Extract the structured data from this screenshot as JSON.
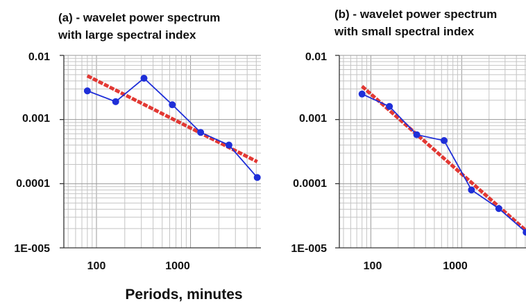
{
  "figure": {
    "xlabel": "Periods, minutes"
  },
  "chart_data": [
    {
      "type": "line",
      "title_lines": [
        "(a) - wavelet power spectrum",
        "with large spectral index"
      ],
      "x_scale": "log",
      "y_scale": "log",
      "xlim": [
        45,
        5600
      ],
      "ylim": [
        1e-05,
        0.01
      ],
      "x_ticks": [
        "100",
        "1000"
      ],
      "y_ticks": [
        "0.01",
        "0.001",
        "0.0001",
        "1E-005"
      ],
      "grid": true,
      "series": [
        {
          "style": "line-markers",
          "color": "#1f2fd8",
          "x": [
            80,
            160,
            320,
            640,
            1280,
            2560,
            5120
          ],
          "y": [
            0.0028,
            0.0019,
            0.0044,
            0.0017,
            0.00063,
            0.0004,
            0.000125
          ]
        },
        {
          "style": "fit-line",
          "color": "#e0241f",
          "x": [
            80,
            5120
          ],
          "y": [
            0.0048,
            0.00022
          ]
        }
      ]
    },
    {
      "type": "line",
      "title_lines": [
        "(b) - wavelet power spectrum",
        "with small spectral index"
      ],
      "x_scale": "log",
      "y_scale": "log",
      "xlim": [
        45,
        5100
      ],
      "ylim": [
        1e-05,
        0.01
      ],
      "x_ticks": [
        "100",
        "1000"
      ],
      "y_ticks": [
        "0.01",
        "0.001",
        "0.0001",
        "1E-005"
      ],
      "grid": true,
      "series": [
        {
          "style": "line-markers",
          "color": "#1f2fd8",
          "x": [
            80,
            160,
            320,
            640,
            1280,
            2560,
            5120
          ],
          "y": [
            0.0025,
            0.0016,
            0.00058,
            0.00047,
            8e-05,
            4.1e-05,
            1.75e-05
          ]
        },
        {
          "style": "fit-line",
          "color": "#e0241f",
          "x": [
            80,
            5120
          ],
          "y": [
            0.0033,
            1.85e-05
          ]
        }
      ]
    }
  ]
}
